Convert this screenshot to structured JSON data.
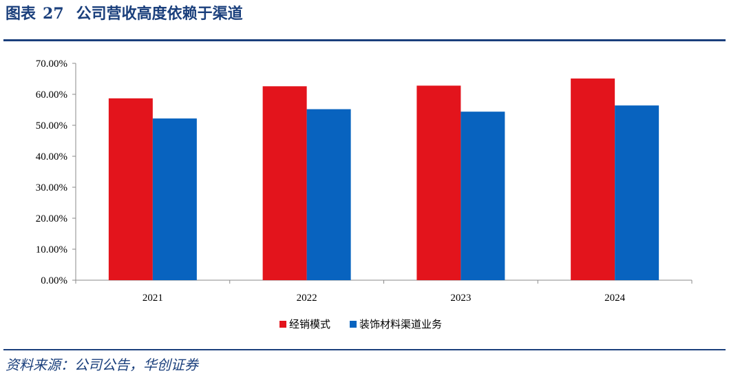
{
  "figure": {
    "label": "图表",
    "number": "27",
    "title": "公司营收高度依赖于渠道"
  },
  "source": "资料来源：公司公告，华创证券",
  "chart_data": {
    "type": "bar",
    "categories": [
      "2021",
      "2022",
      "2023",
      "2024"
    ],
    "series": [
      {
        "name": "经销模式",
        "color": "#e3141c",
        "values": [
          58.7,
          62.6,
          62.8,
          65.1
        ]
      },
      {
        "name": "装饰材料渠道业务",
        "color": "#0863bf",
        "values": [
          52.2,
          55.2,
          54.4,
          56.4
        ]
      }
    ],
    "ylim": [
      0,
      70
    ],
    "yticks": [
      "0.00%",
      "10.00%",
      "20.00%",
      "30.00%",
      "40.00%",
      "50.00%",
      "60.00%",
      "70.00%"
    ],
    "grid": false,
    "legend_position": "bottom"
  }
}
